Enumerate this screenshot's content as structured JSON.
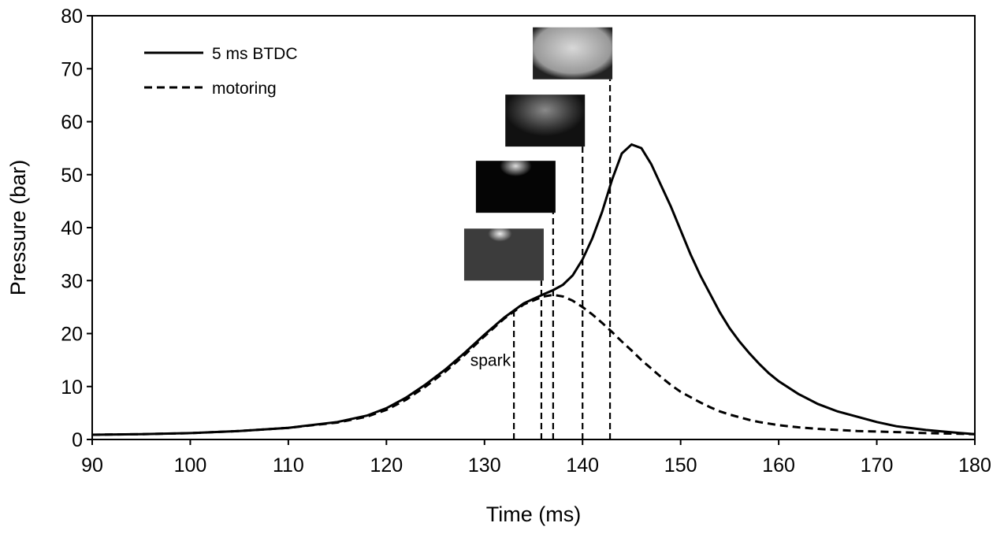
{
  "chart_data": {
    "type": "line",
    "xlabel": "Time (ms)",
    "ylabel": "Pressure (bar)",
    "x": [
      90,
      95,
      100,
      105,
      110,
      115,
      118,
      120,
      122,
      124,
      126,
      128,
      130,
      132,
      134,
      136,
      137,
      138,
      139,
      140,
      141,
      142,
      143,
      144,
      145,
      146,
      147,
      148,
      149,
      150,
      151,
      152,
      153,
      154,
      155,
      156,
      157,
      158,
      159,
      160,
      162,
      164,
      166,
      168,
      170,
      172,
      175,
      178,
      180
    ],
    "series": [
      {
        "name": "5 ms BTDC",
        "color": "#000000",
        "dash": false,
        "values": [
          0.9,
          1.0,
          1.2,
          1.6,
          2.2,
          3.3,
          4.5,
          5.9,
          7.9,
          10.4,
          13.2,
          16.4,
          19.8,
          23,
          25.7,
          27.4,
          28.2,
          29.2,
          31,
          34,
          38,
          43,
          49,
          54,
          55.7,
          55,
          52,
          48,
          44,
          39.5,
          35,
          31,
          27.5,
          24,
          21,
          18.5,
          16.3,
          14.3,
          12.5,
          11,
          8.6,
          6.7,
          5.3,
          4.3,
          3.3,
          2.5,
          1.8,
          1.3,
          1.0
        ]
      },
      {
        "name": "motoring",
        "color": "#000000",
        "dash": true,
        "values": [
          0.9,
          1.0,
          1.2,
          1.6,
          2.2,
          3.2,
          4.3,
          5.6,
          7.5,
          10,
          12.8,
          16,
          19.5,
          22.8,
          25.5,
          27,
          27.3,
          27,
          26.2,
          25,
          23.6,
          22,
          20.3,
          18.5,
          16.8,
          15,
          13.4,
          11.8,
          10.3,
          9,
          8,
          7,
          6.1,
          5.3,
          4.7,
          4.2,
          3.7,
          3.3,
          3,
          2.7,
          2.3,
          2,
          1.8,
          1.6,
          1.5,
          1.4,
          1.2,
          1.1,
          1.0
        ]
      }
    ],
    "events": [
      {
        "x": 133,
        "y": 24,
        "label": "spark"
      },
      {
        "x": 135.8,
        "y": 30
      },
      {
        "x": 137,
        "y": 42.8
      },
      {
        "x": 140,
        "y": 55.3
      },
      {
        "x": 142.8,
        "y": 68
      }
    ],
    "xlim": [
      90,
      180
    ],
    "xticks": [
      90,
      100,
      110,
      120,
      130,
      140,
      150,
      160,
      170,
      180
    ],
    "ylim": [
      0,
      80
    ],
    "yticks": [
      0,
      10,
      20,
      30,
      40,
      50,
      60,
      70,
      80
    ]
  }
}
